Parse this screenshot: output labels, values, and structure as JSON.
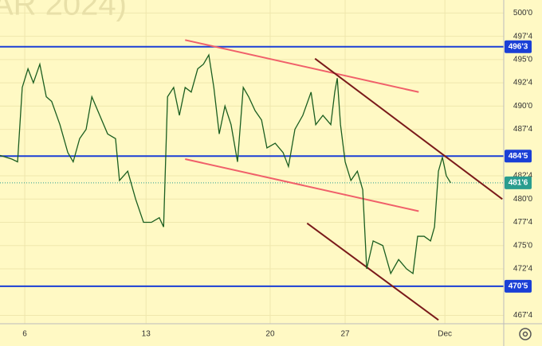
{
  "chart_data": {
    "type": "line",
    "watermark": "AR 2024)",
    "x": [
      0,
      3.3,
      4.9,
      6.2,
      7.8,
      9.3,
      11.1,
      12.9,
      14.4,
      16.7,
      18.9,
      20.4,
      22.2,
      24,
      25.6,
      27.8,
      30,
      32.2,
      33.3,
      35.6,
      37.8,
      40,
      42.2,
      44.4,
      45.6,
      46.7,
      48.4,
      50,
      51.6,
      53.3,
      55.1,
      56.7,
      58.2,
      59.6,
      61.1,
      62.7,
      64.4,
      66.2,
      67.8,
      69.3,
      71.1,
      72.9,
      74.4,
      76.7,
      78.9,
      80.4,
      82.2,
      84.4,
      86.7,
      88,
      90,
      92.2,
      93.3,
      94,
      94.9,
      96.2,
      97.8,
      99.6,
      101.1,
      102.2,
      104,
      106.7,
      108.9,
      111.1,
      113.3,
      115.1,
      116.4,
      118.2,
      120,
      121.1,
      122.2,
      123.3,
      124.4,
      125.6
    ],
    "series": [
      {
        "color": "#1b5e20",
        "values": [
          484.7,
          484.3,
          484,
          492,
          494,
          492.5,
          494.5,
          491,
          490.5,
          488,
          485,
          484,
          486.5,
          487.5,
          491,
          489,
          487,
          486.5,
          482,
          483,
          480,
          477.5,
          477.5,
          478,
          477,
          491,
          492,
          489,
          492,
          491.5,
          494,
          494.5,
          495.5,
          492,
          487,
          490,
          488,
          484,
          492,
          491,
          489.5,
          488.5,
          485.5,
          486,
          485,
          483.5,
          487.5,
          489,
          491.5,
          488,
          489,
          488,
          491.5,
          493,
          488,
          484,
          482,
          483,
          481,
          472.5,
          475.5,
          475,
          472,
          473.5,
          472.5,
          472,
          476,
          476,
          475.5,
          477,
          483,
          484.5,
          482.5,
          481.75
        ]
      }
    ],
    "xlim": [
      0,
      140.4
    ],
    "ylim": [
      466.6,
      501.4
    ],
    "xticks": [
      {
        "value": 6.9,
        "label": "6"
      },
      {
        "value": 40.7,
        "label": "13"
      },
      {
        "value": 75.3,
        "label": "20"
      },
      {
        "value": 96.2,
        "label": "27"
      },
      {
        "value": 124,
        "label": "Dec"
      }
    ],
    "yticks": [
      {
        "value": 500,
        "label": "500'0"
      },
      {
        "value": 497.5,
        "label": "497'4"
      },
      {
        "value": 495,
        "label": "495'0"
      },
      {
        "value": 492.5,
        "label": "492'4"
      },
      {
        "value": 490,
        "label": "490'0"
      },
      {
        "value": 487.5,
        "label": "487'4"
      },
      {
        "value": 482.5,
        "label": "482'4"
      },
      {
        "value": 480,
        "label": "480'0"
      },
      {
        "value": 477.5,
        "label": "477'4"
      },
      {
        "value": 475,
        "label": "475'0"
      },
      {
        "value": 472.5,
        "label": "472'4"
      },
      {
        "value": 467.5,
        "label": "467'4"
      }
    ],
    "levels": [
      {
        "value": 496.375,
        "label": "496'3",
        "color": "#1a3fd6"
      },
      {
        "value": 484.625,
        "label": "484'5",
        "color": "#1a3fd6"
      },
      {
        "value": 470.625,
        "label": "470'5",
        "color": "#1a3fd6"
      }
    ],
    "last_price": {
      "value": 481.75,
      "label": "481'6",
      "color": "#2a9d8f"
    },
    "trend_lines": [
      {
        "x": [
          51.6,
          116.7
        ],
        "y": [
          497.1,
          491.5
        ],
        "color": "#f0606a"
      },
      {
        "x": [
          51.6,
          116.7
        ],
        "y": [
          484.3,
          478.7
        ],
        "color": "#f0606a"
      },
      {
        "x": [
          87.8,
          140
        ],
        "y": [
          495.1,
          480
        ],
        "color": "#7a1a1a"
      },
      {
        "x": [
          85.6,
          122.2
        ],
        "y": [
          477.4,
          467
        ],
        "color": "#7a1a1a"
      }
    ],
    "grid": true
  }
}
